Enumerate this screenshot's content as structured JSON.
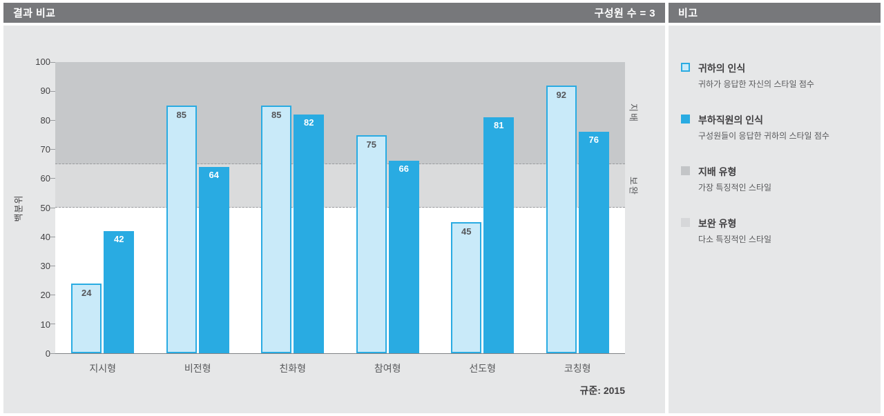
{
  "left_header": {
    "title": "결과 비교",
    "member_count": "구성원 수 = 3"
  },
  "right_header": {
    "title": "비고"
  },
  "chart_data": {
    "type": "bar",
    "title": "결과 비교",
    "ylabel": "백분위",
    "ylim": [
      0,
      100
    ],
    "ytick_step": 10,
    "grid": false,
    "legend_position": "right-panel",
    "categories": [
      "지시형",
      "비전형",
      "친화형",
      "참여형",
      "선도형",
      "코칭형"
    ],
    "series": [
      {
        "key": "self",
        "name": "귀하의 인식",
        "values": [
          24,
          85,
          85,
          75,
          45,
          92
        ]
      },
      {
        "key": "others",
        "name": "부하직원의 인식",
        "values": [
          42,
          64,
          82,
          66,
          81,
          76
        ]
      }
    ],
    "bands": [
      {
        "key": "dominant",
        "name": "지배",
        "from": 65,
        "to": 100,
        "color": "#C6C8CA"
      },
      {
        "key": "backup",
        "name": "보완",
        "from": 50,
        "to": 65,
        "color": "#DADBDC"
      }
    ],
    "norm_label": "규준: 2015"
  },
  "colors": {
    "accent_blue": "#29ABE2",
    "light_blue": "#C9EAF9",
    "header_gray": "#77787B",
    "panel_gray": "#E6E7E8"
  },
  "legend": {
    "items": [
      {
        "key": "self",
        "fill": "#C9EAF9",
        "border": "#29ABE2",
        "title": "귀하의 인식",
        "subtitle": "귀하가 응답한 자신의 스타일 점수"
      },
      {
        "key": "others",
        "fill": "#29ABE2",
        "border": "",
        "title": "부하직원의 인식",
        "subtitle": "구성원들이 응답한 귀하의 스타일 점수"
      },
      {
        "key": "dominant",
        "fill": "#C3C5C7",
        "border": "",
        "title": "지배 유형",
        "subtitle": "가장 특징적인 스타일"
      },
      {
        "key": "backup",
        "fill": "#D6D7D9",
        "border": "",
        "title": "보완 유형",
        "subtitle": "다소 특징적인 스타일"
      }
    ]
  }
}
